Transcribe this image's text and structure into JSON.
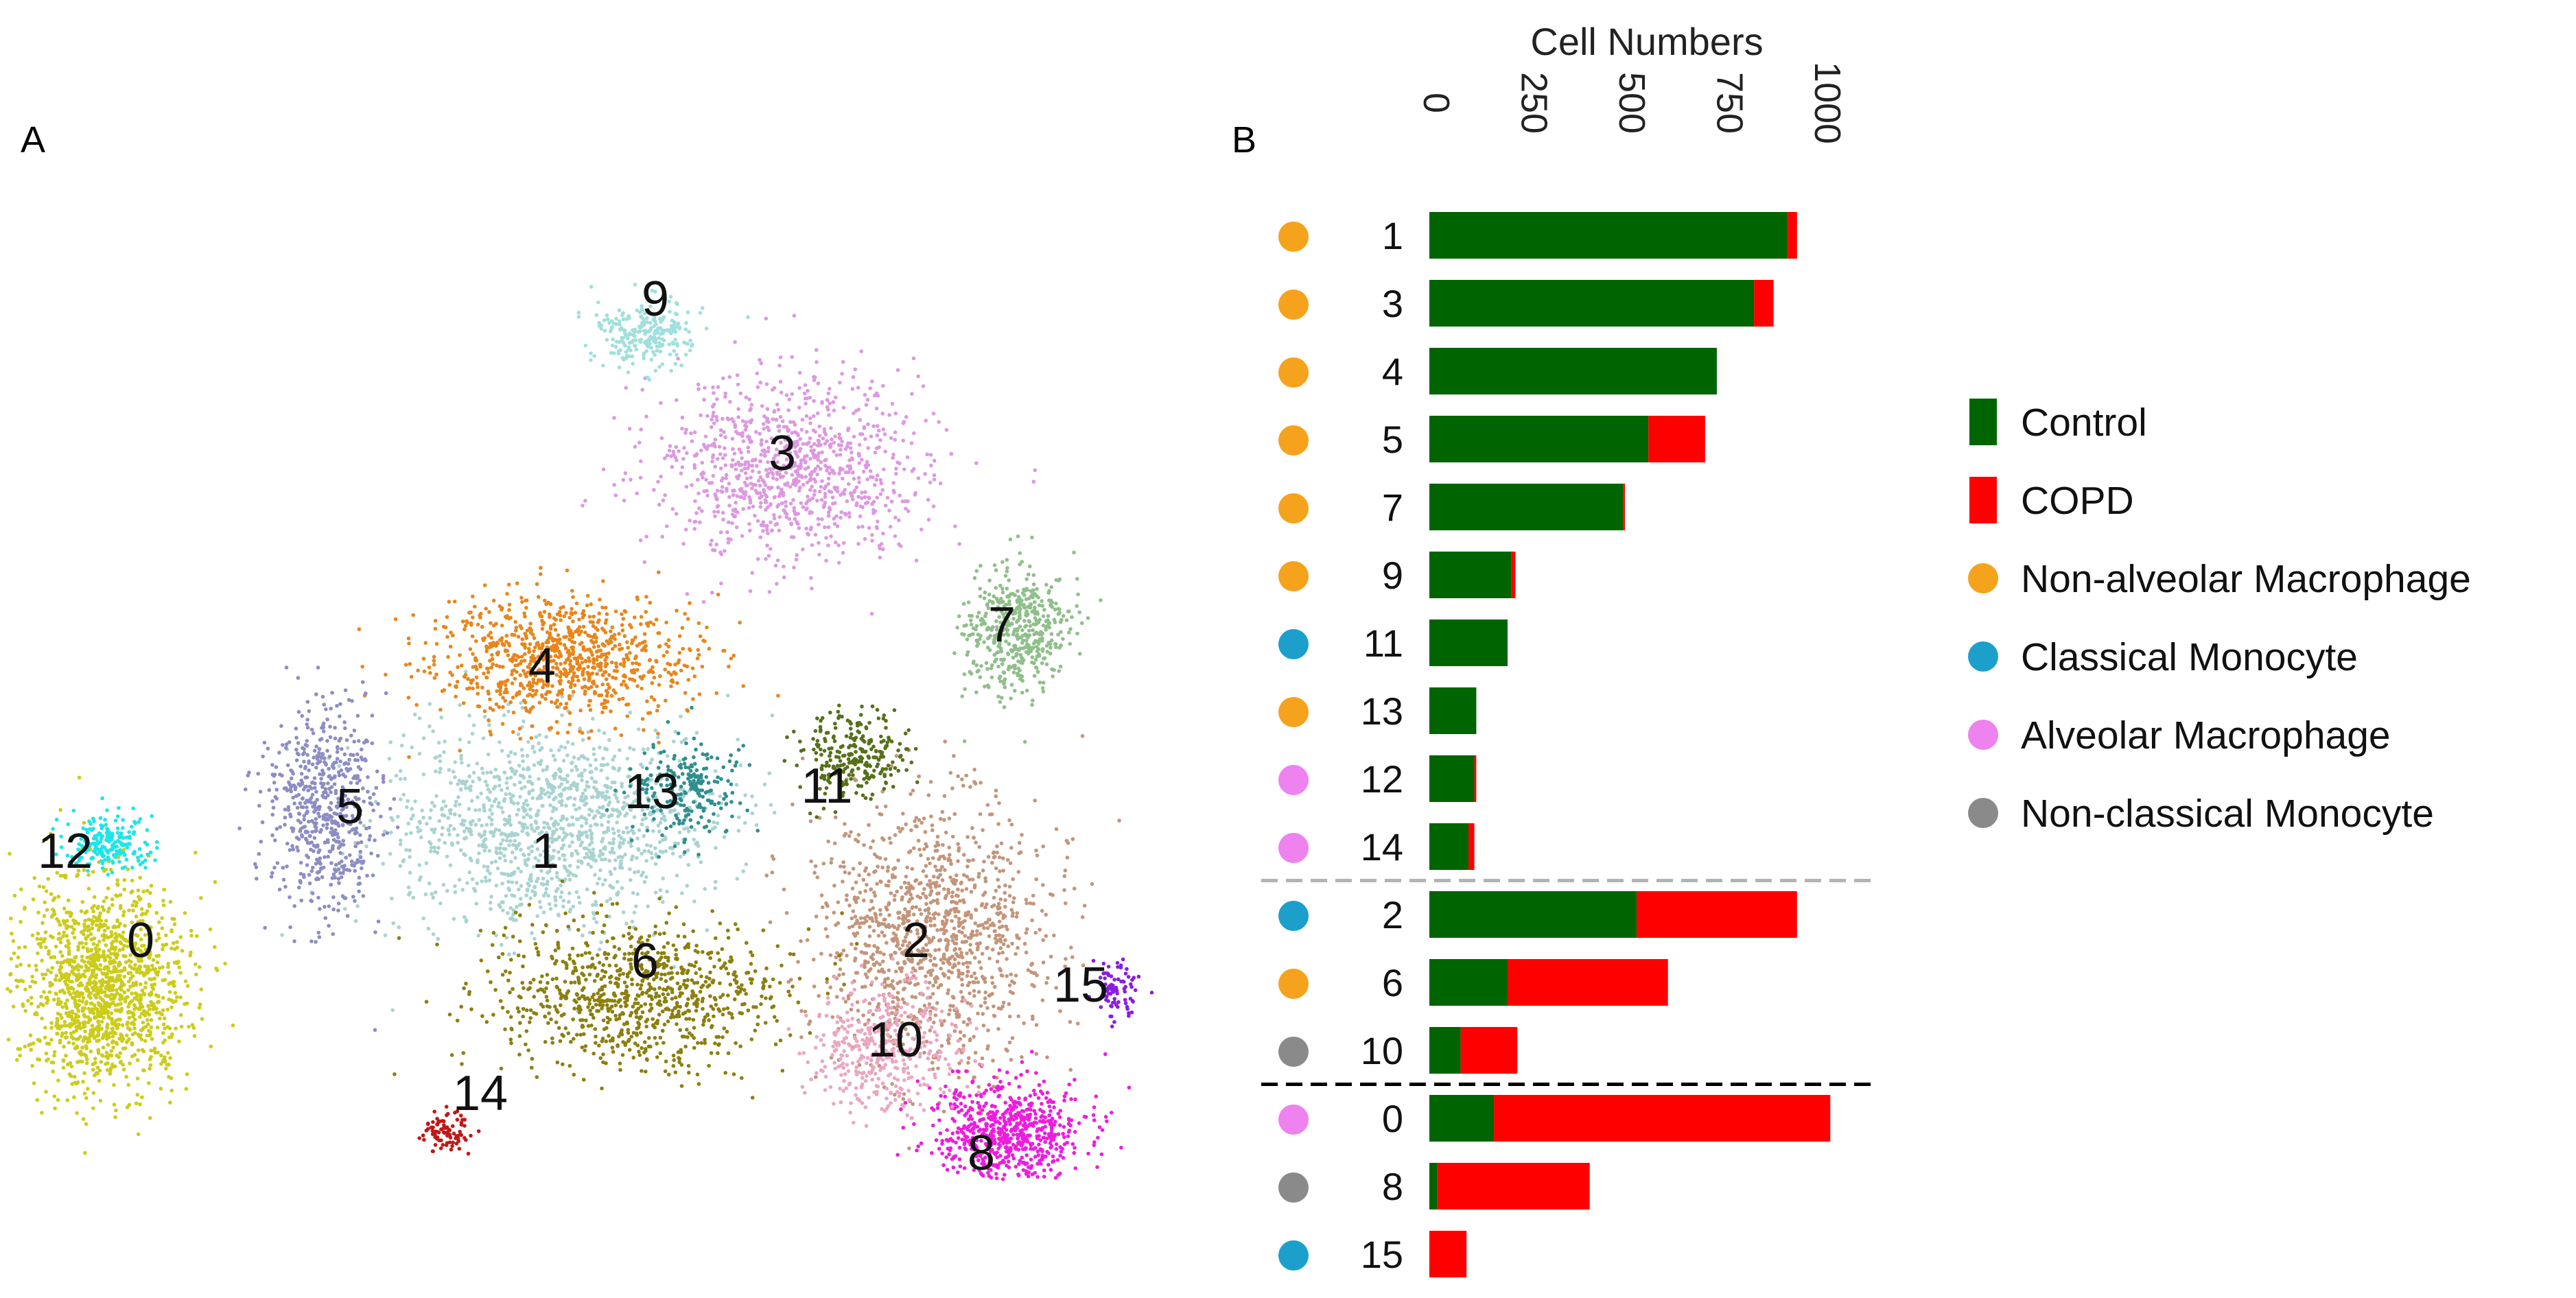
{
  "panel_a": {
    "label": "A",
    "chart_data": {
      "type": "scatter",
      "title": "",
      "xlabel": "",
      "ylabel": "",
      "grid": false,
      "clusters": [
        {
          "id": "0",
          "color": "#cccc1a"
        },
        {
          "id": "1",
          "color": "#a9d3d0"
        },
        {
          "id": "2",
          "color": "#c4957a"
        },
        {
          "id": "3",
          "color": "#dd99e0"
        },
        {
          "id": "4",
          "color": "#e8861c"
        },
        {
          "id": "5",
          "color": "#8d8dc4"
        },
        {
          "id": "6",
          "color": "#8c7f0e"
        },
        {
          "id": "7",
          "color": "#8fbf8a"
        },
        {
          "id": "8",
          "color": "#ee1dde"
        },
        {
          "id": "9",
          "color": "#9fe0dc"
        },
        {
          "id": "10",
          "color": "#eba7c2"
        },
        {
          "id": "11",
          "color": "#56701a"
        },
        {
          "id": "12",
          "color": "#1ee5ea"
        },
        {
          "id": "13",
          "color": "#2f8f8f"
        },
        {
          "id": "14",
          "color": "#c01818"
        },
        {
          "id": "15",
          "color": "#8a1de0"
        }
      ]
    }
  },
  "panel_b": {
    "label": "B",
    "chart_data": {
      "type": "bar",
      "orientation": "horizontal",
      "stacked": true,
      "title": "",
      "xlabel": "Cell Numbers",
      "ylabel": "",
      "xlim": [
        0,
        1000
      ],
      "xticks": [
        "0",
        "250",
        "500",
        "750",
        "1000"
      ],
      "categories": [
        "1",
        "3",
        "4",
        "5",
        "7",
        "9",
        "11",
        "13",
        "12",
        "14",
        "2",
        "6",
        "10",
        "0",
        "8",
        "15"
      ],
      "cell_types": [
        "Non-alveolar Macrophage",
        "Non-alveolar Macrophage",
        "Non-alveolar Macrophage",
        "Non-alveolar Macrophage",
        "Non-alveolar Macrophage",
        "Non-alveolar Macrophage",
        "Classical Monocyte",
        "Non-alveolar Macrophage",
        "Alveolar Macrophage",
        "Alveolar Macrophage",
        "Classical Monocyte",
        "Non-alveolar Macrophage",
        "Non-classical Monocyte",
        "Alveolar Macrophage",
        "Non-classical Monocyte",
        "Classical Monocyte"
      ],
      "series": [
        {
          "name": "Control",
          "color": "#006400",
          "values": [
            915,
            830,
            735,
            560,
            495,
            210,
            200,
            120,
            115,
            100,
            530,
            200,
            80,
            165,
            20,
            0
          ]
        },
        {
          "name": "COPD",
          "color": "#ff0000",
          "values": [
            25,
            50,
            0,
            145,
            5,
            10,
            0,
            0,
            5,
            15,
            410,
            410,
            145,
            860,
            390,
            95
          ]
        }
      ],
      "group_separators": [
        {
          "after_index": 9,
          "style": "dashed",
          "color": "#b3b3b3"
        },
        {
          "after_index": 12,
          "style": "dashed",
          "color": "#000000"
        }
      ]
    },
    "legend": {
      "items": [
        {
          "label": "Control",
          "kind": "bar",
          "color": "#006400"
        },
        {
          "label": "COPD",
          "kind": "bar",
          "color": "#ff0000"
        },
        {
          "label": "Non-alveolar Macrophage",
          "kind": "dot",
          "color": "#f5a21d"
        },
        {
          "label": "Classical Monocyte",
          "kind": "dot",
          "color": "#1d9fcc"
        },
        {
          "label": "Alveolar Macrophage",
          "kind": "dot",
          "color": "#ee82ee"
        },
        {
          "label": "Non-classical Monocyte",
          "kind": "dot",
          "color": "#8a8a8a"
        }
      ]
    }
  }
}
